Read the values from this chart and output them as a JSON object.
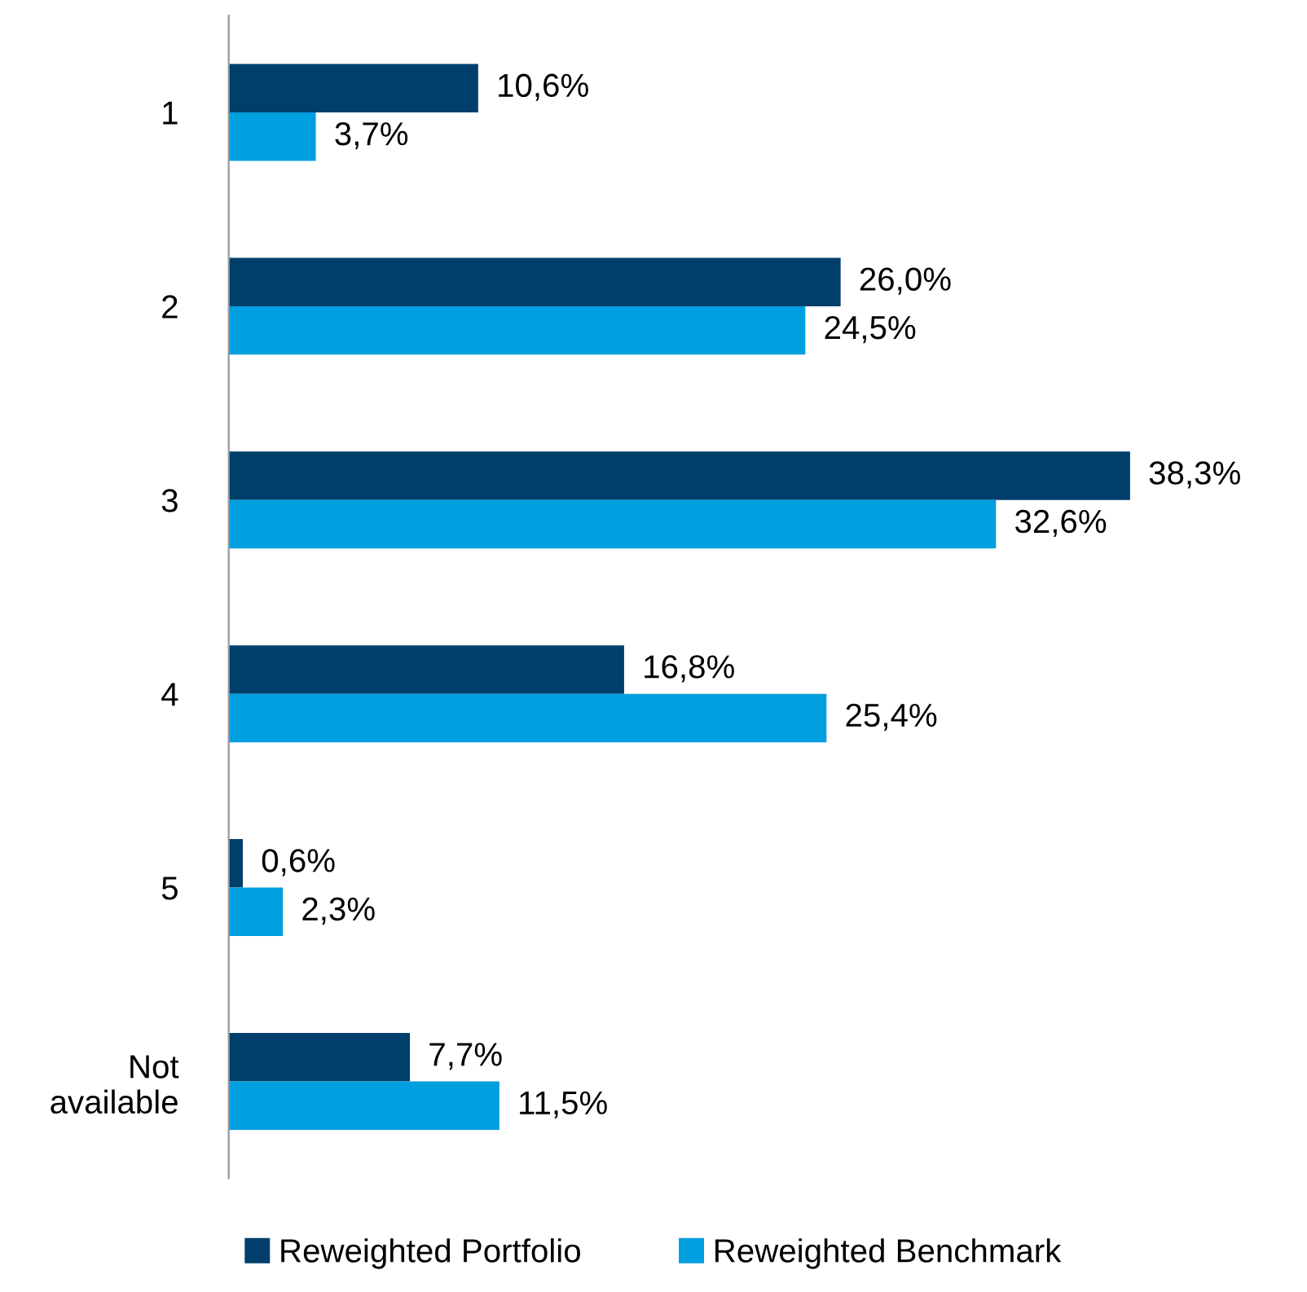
{
  "chart_data": {
    "type": "bar",
    "orientation": "horizontal",
    "categories": [
      "1",
      "2",
      "3",
      "4",
      "5",
      "Not\navailable"
    ],
    "series": [
      {
        "name": "Reweighted Portfolio",
        "color": "#003f6b",
        "values": [
          10.6,
          26.0,
          38.3,
          16.8,
          0.6,
          7.7
        ],
        "value_labels": [
          "10,6%",
          "26,0%",
          "38,3%",
          "16,8%",
          "0,6%",
          "7,7%"
        ]
      },
      {
        "name": "Reweighted Benchmark",
        "color": "#009fdf",
        "values": [
          3.7,
          24.5,
          32.6,
          25.4,
          2.3,
          11.5
        ],
        "value_labels": [
          "3,7%",
          "24,5%",
          "32,6%",
          "25,4%",
          "2,3%",
          "11,5%"
        ]
      }
    ],
    "legend": "bottom",
    "grid": false
  }
}
